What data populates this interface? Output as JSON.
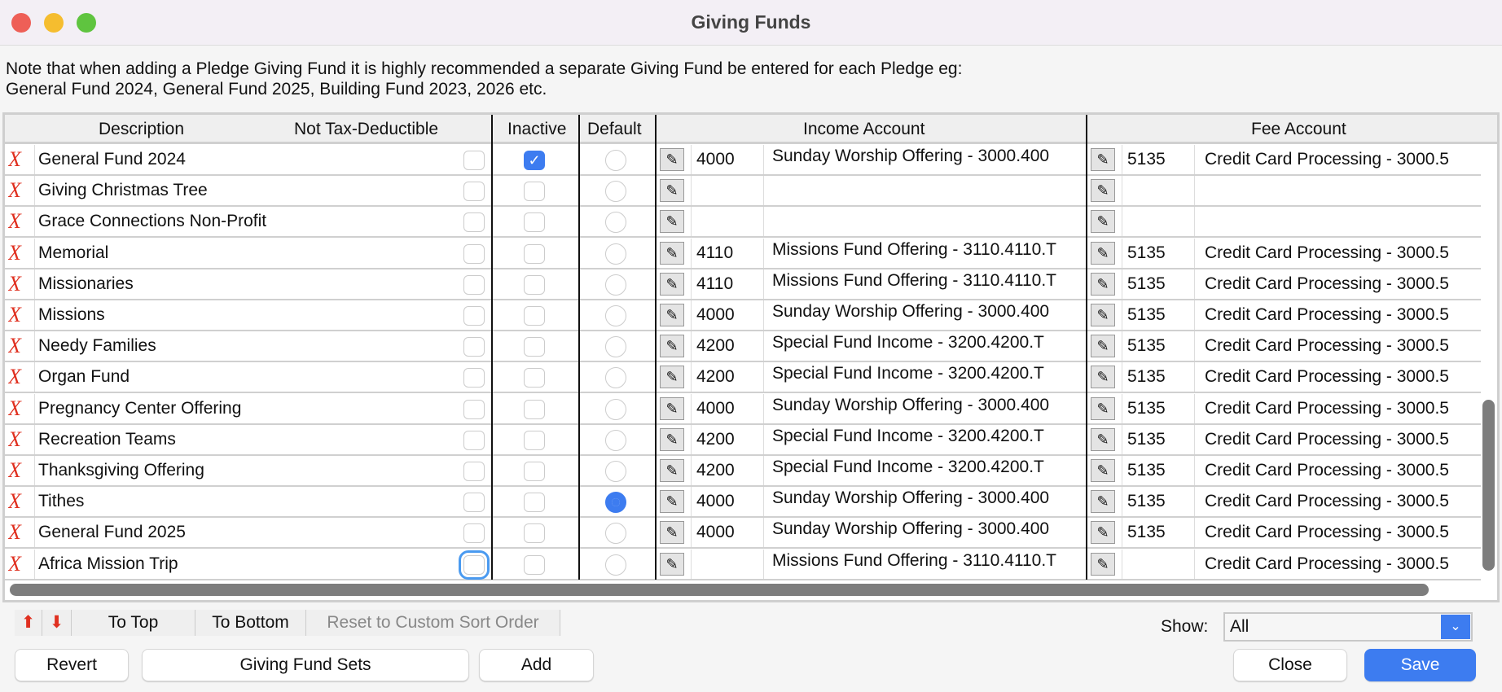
{
  "window": {
    "title": "Giving Funds"
  },
  "note": {
    "line1": "Note that when adding a Pledge Giving Fund it is highly recommended a separate Giving Fund be entered for each Pledge eg:",
    "line2": "General Fund 2024, General Fund 2025, Building Fund 2023, 2026 etc."
  },
  "columns": {
    "description": "Description",
    "not_tax": "Not Tax-Deductible",
    "inactive": "Inactive",
    "default": "Default",
    "income": "Income Account",
    "fee": "Fee Account"
  },
  "rows": [
    {
      "desc": "General Fund 2024",
      "not_tax": false,
      "inactive": true,
      "default": false,
      "inc_num": "4000",
      "inc_name": "Sunday Worship Offering - 3000.400",
      "fee_num": "5135",
      "fee_name": "Credit Card Processing - 3000.5"
    },
    {
      "desc": "Giving Christmas Tree",
      "not_tax": false,
      "inactive": false,
      "default": false,
      "inc_num": "",
      "inc_name": "",
      "fee_num": "",
      "fee_name": ""
    },
    {
      "desc": "Grace Connections Non-Profit",
      "not_tax": false,
      "inactive": false,
      "default": false,
      "inc_num": "",
      "inc_name": "",
      "fee_num": "",
      "fee_name": ""
    },
    {
      "desc": "Memorial",
      "not_tax": false,
      "inactive": false,
      "default": false,
      "inc_num": "4110",
      "inc_name": "Missions Fund Offering - 3110.4110.T",
      "fee_num": "5135",
      "fee_name": "Credit Card Processing - 3000.5"
    },
    {
      "desc": "Missionaries",
      "not_tax": false,
      "inactive": false,
      "default": false,
      "inc_num": "4110",
      "inc_name": "Missions Fund Offering - 3110.4110.T",
      "fee_num": "5135",
      "fee_name": "Credit Card Processing - 3000.5"
    },
    {
      "desc": "Missions",
      "not_tax": false,
      "inactive": false,
      "default": false,
      "inc_num": "4000",
      "inc_name": "Sunday Worship Offering - 3000.400",
      "fee_num": "5135",
      "fee_name": "Credit Card Processing - 3000.5"
    },
    {
      "desc": "Needy Families",
      "not_tax": false,
      "inactive": false,
      "default": false,
      "inc_num": "4200",
      "inc_name": "Special Fund Income - 3200.4200.T",
      "fee_num": "5135",
      "fee_name": "Credit Card Processing - 3000.5"
    },
    {
      "desc": "Organ Fund",
      "not_tax": false,
      "inactive": false,
      "default": false,
      "inc_num": "4200",
      "inc_name": "Special Fund Income - 3200.4200.T",
      "fee_num": "5135",
      "fee_name": "Credit Card Processing - 3000.5"
    },
    {
      "desc": "Pregnancy Center Offering",
      "not_tax": false,
      "inactive": false,
      "default": false,
      "inc_num": "4000",
      "inc_name": "Sunday Worship Offering - 3000.400",
      "fee_num": "5135",
      "fee_name": "Credit Card Processing - 3000.5"
    },
    {
      "desc": "Recreation Teams",
      "not_tax": false,
      "inactive": false,
      "default": false,
      "inc_num": "4200",
      "inc_name": "Special Fund Income - 3200.4200.T",
      "fee_num": "5135",
      "fee_name": "Credit Card Processing - 3000.5"
    },
    {
      "desc": "Thanksgiving Offering",
      "not_tax": false,
      "inactive": false,
      "default": false,
      "inc_num": "4200",
      "inc_name": "Special Fund Income - 3200.4200.T",
      "fee_num": "5135",
      "fee_name": "Credit Card Processing - 3000.5"
    },
    {
      "desc": "Tithes",
      "not_tax": false,
      "inactive": false,
      "default": true,
      "inc_num": "4000",
      "inc_name": "Sunday Worship Offering - 3000.400",
      "fee_num": "5135",
      "fee_name": "Credit Card Processing - 3000.5"
    },
    {
      "desc": "General Fund 2025",
      "not_tax": false,
      "inactive": false,
      "default": false,
      "inc_num": "4000",
      "inc_name": "Sunday Worship Offering - 3000.400",
      "fee_num": "5135",
      "fee_name": "Credit Card Processing - 3000.5"
    },
    {
      "desc": "Africa Mission Trip",
      "not_tax": false,
      "inactive": false,
      "default": false,
      "inc_num": "",
      "inc_name": "Missions Fund Offering - 3110.4110.T",
      "fee_num": "",
      "fee_name": "Credit Card Processing - 3000.5"
    }
  ],
  "toolbar": {
    "to_top": "To Top",
    "to_bottom": "To Bottom",
    "reset": "Reset to Custom Sort Order"
  },
  "show": {
    "label": "Show:",
    "value": "All"
  },
  "buttons": {
    "revert": "Revert",
    "sets": "Giving Fund Sets",
    "add": "Add",
    "close": "Close",
    "save": "Save"
  },
  "colors": {
    "accent": "#3d7cf0",
    "delete": "#e03020"
  }
}
